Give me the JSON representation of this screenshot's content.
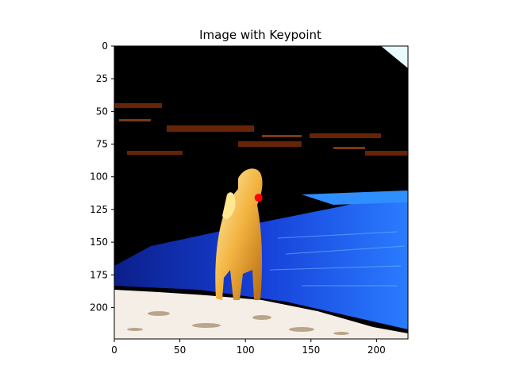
{
  "chart_data": {
    "type": "scatter",
    "title": "Image with Keypoint",
    "xlabel": "",
    "ylabel": "",
    "xlim": [
      0,
      224
    ],
    "ylim": [
      224,
      0
    ],
    "y_inverted": true,
    "grid": false,
    "xticks": [
      0,
      50,
      100,
      150,
      200
    ],
    "yticks": [
      0,
      25,
      50,
      75,
      100,
      125,
      150,
      175,
      200
    ],
    "background_image": "photo of a golden long-haired dog standing on a sandy shore in front of blue water at night",
    "series": [
      {
        "points": [
          {
            "x": 110,
            "y": 116
          }
        ],
        "color": "#ff0000"
      }
    ]
  }
}
